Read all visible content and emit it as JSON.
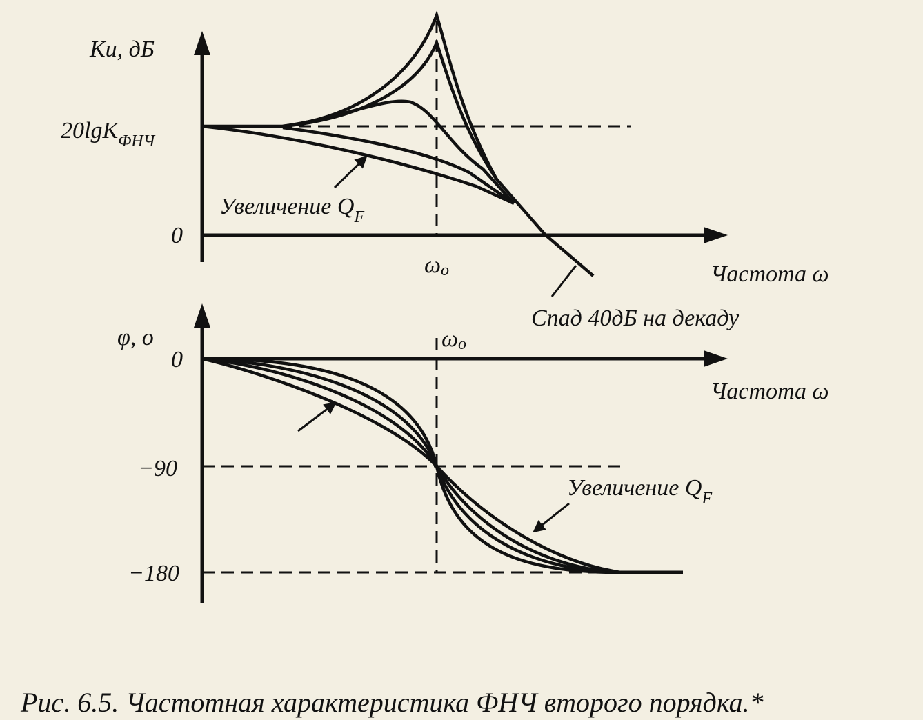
{
  "top_plot": {
    "y_label": "Ku, дБ",
    "level_label": "20lgK",
    "level_label_sub": "ФНЧ",
    "zero_label": "0",
    "annotation": "Увеличение Q",
    "annotation_sub": "F",
    "omega_label": "ω",
    "omega_sub": "o",
    "x_label": "Частота ω",
    "rolloff_label": "Спад 40дБ на декаду"
  },
  "bottom_plot": {
    "y_label": "φ, o",
    "zero_label": "0",
    "omega_label": "ω",
    "omega_sub": "o",
    "x_label": "Частота ω",
    "minus90_label": "−90",
    "minus180_label": "−180",
    "annotation": "Увеличение Q",
    "annotation_sub": "F"
  },
  "caption": "Рис. 6.5. Частотная характеристика ФНЧ второго порядка.*"
}
